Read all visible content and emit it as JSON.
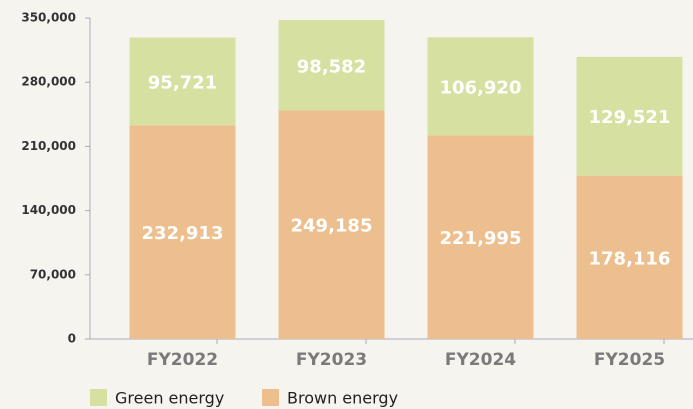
{
  "chart_data": {
    "type": "stacked_bar",
    "categories": [
      "FY2022",
      "FY2023",
      "FY2024",
      "FY2025"
    ],
    "series": [
      {
        "name": "Green energy",
        "color": "#d6e0a0",
        "values": [
          95721,
          98582,
          106920,
          129521
        ],
        "value_labels": [
          "95,721",
          "98,582",
          "106,920",
          "129,521"
        ]
      },
      {
        "name": "Brown energy",
        "color": "#eebf8e",
        "values": [
          232913,
          249185,
          221995,
          178116
        ],
        "value_labels": [
          "232,913",
          "249,185",
          "221,995",
          "178,116"
        ]
      }
    ],
    "ylim": [
      0,
      350000
    ],
    "yticks": [
      0,
      {
        "value": 70000,
        "label": "70,000"
      },
      {
        "value": 140000,
        "label": "140,000"
      },
      {
        "value": 210000,
        "label": "210,000"
      },
      {
        "value": 280000,
        "label": "280,000"
      },
      {
        "value": 350000,
        "label": "350,000"
      }
    ],
    "legend": "bottom"
  }
}
